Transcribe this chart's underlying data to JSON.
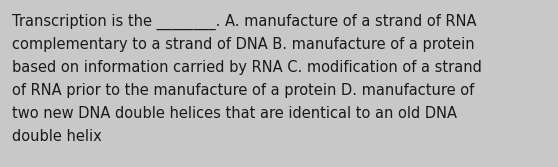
{
  "background_color": "#c8c8c8",
  "text_color": "#1a1a1a",
  "font_size": 10.5,
  "text_lines": [
    "Transcription is the ________. A. manufacture of a strand of RNA",
    "complementary to a strand of DNA B. manufacture of a protein",
    "based on information carried by RNA C. modification of a strand",
    "of RNA prior to the manufacture of a protein D. manufacture of",
    "two new DNA double helices that are identical to an old DNA",
    "double helix"
  ],
  "fig_width": 5.58,
  "fig_height": 1.67,
  "dpi": 100
}
